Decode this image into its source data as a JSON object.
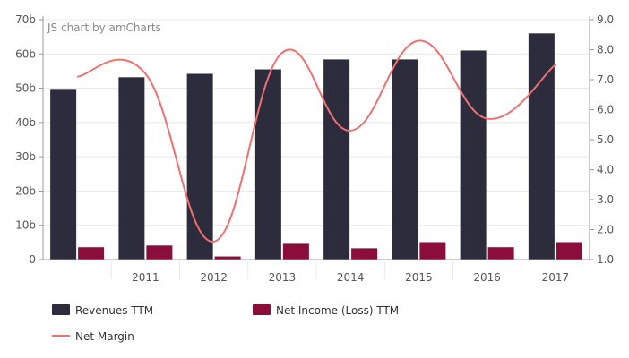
{
  "credit": "JS chart by amCharts",
  "colors": {
    "revenue": "#2c2c3c",
    "net_income": "#8b0d3a",
    "net_margin": "#f07070",
    "grid": "#e8e8e8",
    "axis": "#999999"
  },
  "chart_data": {
    "type": "bar",
    "categories": [
      "",
      "2011",
      "2012",
      "2013",
      "2014",
      "2015",
      "2016",
      "2017"
    ],
    "series": [
      {
        "name": "Revenues TTM",
        "type": "bar",
        "axis": "left",
        "values": [
          49.8,
          53.2,
          54.2,
          55.5,
          58.4,
          58.4,
          61.0,
          66.0
        ]
      },
      {
        "name": "Net Income (Loss) TTM",
        "type": "bar",
        "axis": "left",
        "values": [
          3.6,
          4.1,
          0.9,
          4.6,
          3.3,
          5.1,
          3.6,
          5.1
        ]
      },
      {
        "name": "Net Margin",
        "type": "line",
        "axis": "right",
        "values": [
          7.1,
          7.2,
          1.6,
          7.9,
          5.3,
          8.3,
          5.7,
          7.5
        ]
      }
    ],
    "y_left": {
      "ticks": [
        "0",
        "10b",
        "20b",
        "30b",
        "40b",
        "50b",
        "60b",
        "70b"
      ],
      "ylim": [
        0,
        70
      ]
    },
    "y_right": {
      "ticks": [
        "1.0",
        "2.0",
        "3.0",
        "4.0",
        "5.0",
        "6.0",
        "7.0",
        "8.0",
        "9.0"
      ],
      "ylim": [
        1,
        9
      ]
    },
    "grid": true,
    "legend_position": "bottom-left"
  }
}
